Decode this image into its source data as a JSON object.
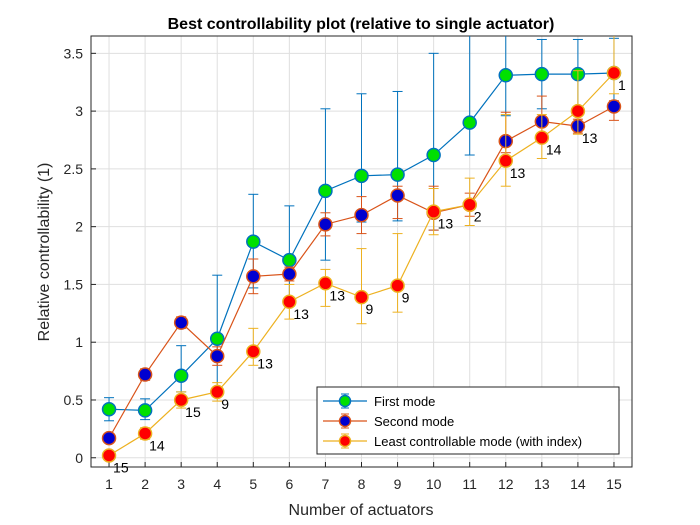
{
  "chart_data": {
    "type": "line",
    "title": "Best controllability plot (relative to single actuator)",
    "xlabel": "Number of actuators",
    "ylabel": "Relative controllability (1)",
    "xlim": [
      0.5,
      15.5
    ],
    "ylim": [
      -0.08,
      3.65
    ],
    "xticks": [
      1,
      2,
      3,
      4,
      5,
      6,
      7,
      8,
      9,
      10,
      11,
      12,
      13,
      14,
      15
    ],
    "yticks": [
      0,
      0.5,
      1,
      1.5,
      2,
      2.5,
      3,
      3.5
    ],
    "ytick_labels": [
      "0",
      "0.5",
      "1",
      "1.5",
      "2",
      "2.5",
      "3",
      "3.5"
    ],
    "grid": true,
    "legend_placement": "bottom-right",
    "x": [
      1,
      2,
      3,
      4,
      5,
      6,
      7,
      8,
      9,
      10,
      11,
      12,
      13,
      14,
      15
    ],
    "series": [
      {
        "name": "First mode",
        "line_color": "#0072BD",
        "marker_fill": "#00E000",
        "values": [
          0.42,
          0.41,
          0.71,
          1.03,
          1.87,
          1.71,
          2.31,
          2.44,
          2.45,
          2.62,
          2.9,
          3.31,
          3.32,
          3.32,
          3.33
        ],
        "err_low": [
          0.1,
          0.08,
          0.14,
          0.5,
          0.4,
          0.4,
          0.6,
          0.4,
          0.4,
          0.65,
          0.28,
          0.35,
          0.3,
          0.3,
          0.3
        ],
        "err_high": [
          0.1,
          0.1,
          0.26,
          0.55,
          0.41,
          0.47,
          0.71,
          0.71,
          0.72,
          0.88,
          0.8,
          0.35,
          0.3,
          0.3,
          0.3
        ]
      },
      {
        "name": "Second mode",
        "line_color": "#D95319",
        "marker_fill": "#0000D0",
        "values": [
          0.17,
          0.72,
          1.17,
          0.88,
          1.57,
          1.59,
          2.02,
          2.1,
          2.27,
          2.12,
          2.19,
          2.74,
          2.91,
          2.87,
          3.04
        ],
        "err_low": [
          0.03,
          0.05,
          0.05,
          0.08,
          0.15,
          0.06,
          0.1,
          0.16,
          0.2,
          0.15,
          0.1,
          0.1,
          0.12,
          0.06,
          0.12
        ],
        "err_high": [
          0.03,
          0.05,
          0.05,
          0.08,
          0.15,
          0.06,
          0.1,
          0.16,
          0.08,
          0.23,
          0.1,
          0.25,
          0.22,
          0.06,
          0.05
        ]
      },
      {
        "name": "Least controllable mode (with index)",
        "line_color": "#EDB120",
        "marker_fill": "#FF0000",
        "values": [
          0.02,
          0.21,
          0.5,
          0.57,
          0.92,
          1.35,
          1.51,
          1.39,
          1.49,
          2.13,
          2.19,
          2.57,
          2.77,
          3.0,
          3.33
        ],
        "err_low": [
          0.02,
          0.05,
          0.07,
          0.08,
          0.12,
          0.15,
          0.2,
          0.23,
          0.23,
          0.2,
          0.18,
          0.22,
          0.18,
          0.2,
          0.18
        ],
        "err_high": [
          0.02,
          0.05,
          0.07,
          0.08,
          0.2,
          0.15,
          0.12,
          0.42,
          0.45,
          0.2,
          0.23,
          0.4,
          0.2,
          0.35,
          0.5
        ]
      }
    ],
    "annotations": [
      {
        "x": 1,
        "y": 0.02,
        "text": "15"
      },
      {
        "x": 2,
        "y": 0.21,
        "text": "14"
      },
      {
        "x": 3,
        "y": 0.5,
        "text": "15"
      },
      {
        "x": 4,
        "y": 0.57,
        "text": "9"
      },
      {
        "x": 5,
        "y": 0.92,
        "text": "13"
      },
      {
        "x": 6,
        "y": 1.35,
        "text": "13"
      },
      {
        "x": 7,
        "y": 1.51,
        "text": "13"
      },
      {
        "x": 8,
        "y": 1.39,
        "text": "9"
      },
      {
        "x": 9,
        "y": 1.49,
        "text": "9"
      },
      {
        "x": 10,
        "y": 2.13,
        "text": "13"
      },
      {
        "x": 11,
        "y": 2.19,
        "text": "2"
      },
      {
        "x": 12,
        "y": 2.57,
        "text": "13"
      },
      {
        "x": 13,
        "y": 2.77,
        "text": "14"
      },
      {
        "x": 14,
        "y": 2.87,
        "text": "13"
      },
      {
        "x": 15,
        "y": 3.33,
        "text": "1"
      }
    ]
  }
}
